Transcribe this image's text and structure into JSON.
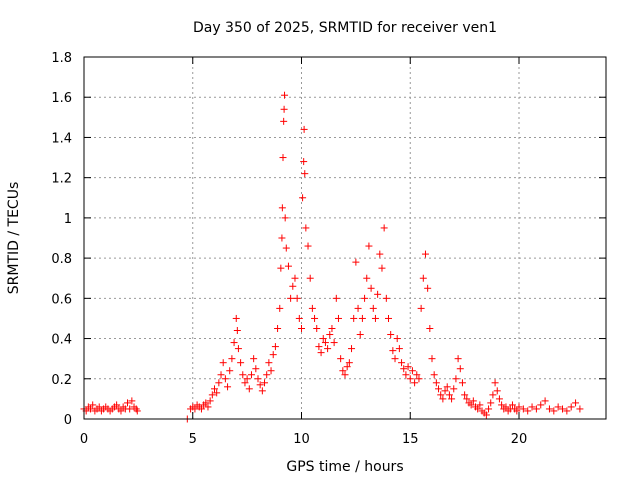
{
  "chart_data": {
    "type": "scatter",
    "title": "Day 350 of 2025, SRMTID for receiver ven1",
    "xlabel": "GPS time / hours",
    "ylabel": "SRMTID / TECUs",
    "xlim": [
      0,
      24
    ],
    "ylim": [
      0,
      1.8
    ],
    "xticks": [
      0,
      5,
      10,
      15,
      20
    ],
    "yticks": [
      0,
      0.2,
      0.4,
      0.6,
      0.8,
      1,
      1.2,
      1.4,
      1.6,
      1.8
    ],
    "xtick_labels": [
      "0",
      "5",
      "10",
      "15",
      "20"
    ],
    "ytick_labels": [
      "0",
      "0.2",
      "0.4",
      "0.6",
      "0.8",
      "1",
      "1.2",
      "1.4",
      "1.6",
      "1.8"
    ],
    "grid": true,
    "marker": "+",
    "color": "#ff0000",
    "series": [
      {
        "name": "SRMTID",
        "points": [
          [
            0.0,
            0.05
          ],
          [
            0.1,
            0.04
          ],
          [
            0.2,
            0.06
          ],
          [
            0.3,
            0.05
          ],
          [
            0.4,
            0.07
          ],
          [
            0.5,
            0.04
          ],
          [
            0.6,
            0.05
          ],
          [
            0.7,
            0.06
          ],
          [
            0.8,
            0.04
          ],
          [
            0.9,
            0.05
          ],
          [
            1.0,
            0.06
          ],
          [
            1.1,
            0.05
          ],
          [
            1.2,
            0.04
          ],
          [
            1.3,
            0.05
          ],
          [
            1.4,
            0.06
          ],
          [
            1.5,
            0.07
          ],
          [
            1.6,
            0.05
          ],
          [
            1.7,
            0.04
          ],
          [
            1.8,
            0.06
          ],
          [
            1.9,
            0.05
          ],
          [
            2.0,
            0.08
          ],
          [
            2.1,
            0.05
          ],
          [
            2.2,
            0.09
          ],
          [
            2.3,
            0.06
          ],
          [
            2.4,
            0.05
          ],
          [
            2.45,
            0.04
          ],
          [
            4.75,
            0.0
          ],
          [
            4.9,
            0.05
          ],
          [
            5.0,
            0.06
          ],
          [
            5.1,
            0.05
          ],
          [
            5.2,
            0.07
          ],
          [
            5.3,
            0.06
          ],
          [
            5.4,
            0.05
          ],
          [
            5.5,
            0.07
          ],
          [
            5.6,
            0.08
          ],
          [
            5.7,
            0.06
          ],
          [
            5.8,
            0.09
          ],
          [
            5.9,
            0.12
          ],
          [
            6.0,
            0.15
          ],
          [
            6.1,
            0.13
          ],
          [
            6.2,
            0.18
          ],
          [
            6.3,
            0.22
          ],
          [
            6.4,
            0.28
          ],
          [
            6.5,
            0.2
          ],
          [
            6.6,
            0.16
          ],
          [
            6.7,
            0.24
          ],
          [
            6.8,
            0.3
          ],
          [
            6.9,
            0.38
          ],
          [
            7.0,
            0.5
          ],
          [
            7.05,
            0.44
          ],
          [
            7.1,
            0.35
          ],
          [
            7.2,
            0.28
          ],
          [
            7.3,
            0.22
          ],
          [
            7.4,
            0.18
          ],
          [
            7.5,
            0.2
          ],
          [
            7.6,
            0.15
          ],
          [
            7.7,
            0.22
          ],
          [
            7.8,
            0.3
          ],
          [
            7.9,
            0.25
          ],
          [
            8.0,
            0.2
          ],
          [
            8.1,
            0.17
          ],
          [
            8.2,
            0.14
          ],
          [
            8.3,
            0.18
          ],
          [
            8.4,
            0.22
          ],
          [
            8.5,
            0.28
          ],
          [
            8.6,
            0.24
          ],
          [
            8.7,
            0.32
          ],
          [
            8.8,
            0.36
          ],
          [
            8.9,
            0.45
          ],
          [
            9.0,
            0.55
          ],
          [
            9.05,
            0.75
          ],
          [
            9.1,
            0.9
          ],
          [
            9.12,
            1.05
          ],
          [
            9.15,
            1.3
          ],
          [
            9.18,
            1.48
          ],
          [
            9.2,
            1.54
          ],
          [
            9.22,
            1.61
          ],
          [
            9.25,
            1.0
          ],
          [
            9.3,
            0.85
          ],
          [
            9.4,
            0.76
          ],
          [
            9.5,
            0.6
          ],
          [
            9.6,
            0.66
          ],
          [
            9.7,
            0.7
          ],
          [
            9.8,
            0.6
          ],
          [
            9.9,
            0.5
          ],
          [
            10.0,
            0.45
          ],
          [
            10.05,
            1.1
          ],
          [
            10.1,
            1.28
          ],
          [
            10.12,
            1.44
          ],
          [
            10.15,
            1.22
          ],
          [
            10.2,
            0.95
          ],
          [
            10.3,
            0.86
          ],
          [
            10.4,
            0.7
          ],
          [
            10.5,
            0.55
          ],
          [
            10.6,
            0.5
          ],
          [
            10.7,
            0.45
          ],
          [
            10.8,
            0.36
          ],
          [
            10.9,
            0.33
          ],
          [
            11.0,
            0.4
          ],
          [
            11.1,
            0.38
          ],
          [
            11.2,
            0.35
          ],
          [
            11.3,
            0.42
          ],
          [
            11.4,
            0.45
          ],
          [
            11.5,
            0.38
          ],
          [
            11.6,
            0.6
          ],
          [
            11.7,
            0.5
          ],
          [
            11.8,
            0.3
          ],
          [
            11.9,
            0.24
          ],
          [
            12.0,
            0.22
          ],
          [
            12.1,
            0.26
          ],
          [
            12.2,
            0.28
          ],
          [
            12.3,
            0.35
          ],
          [
            12.4,
            0.5
          ],
          [
            12.5,
            0.78
          ],
          [
            12.6,
            0.55
          ],
          [
            12.7,
            0.42
          ],
          [
            12.8,
            0.5
          ],
          [
            12.9,
            0.6
          ],
          [
            13.0,
            0.7
          ],
          [
            13.1,
            0.86
          ],
          [
            13.2,
            0.65
          ],
          [
            13.3,
            0.55
          ],
          [
            13.4,
            0.5
          ],
          [
            13.5,
            0.62
          ],
          [
            13.6,
            0.82
          ],
          [
            13.7,
            0.75
          ],
          [
            13.8,
            0.95
          ],
          [
            13.9,
            0.6
          ],
          [
            14.0,
            0.5
          ],
          [
            14.1,
            0.42
          ],
          [
            14.2,
            0.34
          ],
          [
            14.3,
            0.3
          ],
          [
            14.4,
            0.4
          ],
          [
            14.5,
            0.35
          ],
          [
            14.6,
            0.28
          ],
          [
            14.7,
            0.25
          ],
          [
            14.8,
            0.22
          ],
          [
            14.9,
            0.26
          ],
          [
            15.0,
            0.2
          ],
          [
            15.1,
            0.24
          ],
          [
            15.2,
            0.18
          ],
          [
            15.3,
            0.22
          ],
          [
            15.4,
            0.2
          ],
          [
            15.5,
            0.55
          ],
          [
            15.6,
            0.7
          ],
          [
            15.7,
            0.82
          ],
          [
            15.8,
            0.65
          ],
          [
            15.9,
            0.45
          ],
          [
            16.0,
            0.3
          ],
          [
            16.1,
            0.22
          ],
          [
            16.2,
            0.18
          ],
          [
            16.3,
            0.15
          ],
          [
            16.4,
            0.12
          ],
          [
            16.5,
            0.1
          ],
          [
            16.6,
            0.14
          ],
          [
            16.7,
            0.16
          ],
          [
            16.8,
            0.12
          ],
          [
            16.9,
            0.1
          ],
          [
            17.0,
            0.15
          ],
          [
            17.1,
            0.2
          ],
          [
            17.2,
            0.3
          ],
          [
            17.3,
            0.25
          ],
          [
            17.4,
            0.18
          ],
          [
            17.5,
            0.12
          ],
          [
            17.6,
            0.1
          ],
          [
            17.7,
            0.08
          ],
          [
            17.8,
            0.07
          ],
          [
            17.9,
            0.09
          ],
          [
            18.0,
            0.06
          ],
          [
            18.1,
            0.05
          ],
          [
            18.2,
            0.07
          ],
          [
            18.3,
            0.04
          ],
          [
            18.4,
            0.03
          ],
          [
            18.5,
            0.02
          ],
          [
            18.6,
            0.05
          ],
          [
            18.7,
            0.08
          ],
          [
            18.8,
            0.12
          ],
          [
            18.9,
            0.18
          ],
          [
            19.0,
            0.14
          ],
          [
            19.1,
            0.1
          ],
          [
            19.2,
            0.07
          ],
          [
            19.3,
            0.05
          ],
          [
            19.4,
            0.06
          ],
          [
            19.5,
            0.04
          ],
          [
            19.6,
            0.05
          ],
          [
            19.7,
            0.07
          ],
          [
            19.8,
            0.05
          ],
          [
            19.9,
            0.04
          ],
          [
            20.0,
            0.06
          ],
          [
            20.2,
            0.05
          ],
          [
            20.4,
            0.04
          ],
          [
            20.6,
            0.06
          ],
          [
            20.8,
            0.05
          ],
          [
            21.0,
            0.07
          ],
          [
            21.2,
            0.09
          ],
          [
            21.4,
            0.05
          ],
          [
            21.6,
            0.04
          ],
          [
            21.8,
            0.06
          ],
          [
            22.0,
            0.05
          ],
          [
            22.2,
            0.04
          ],
          [
            22.4,
            0.06
          ],
          [
            22.6,
            0.08
          ],
          [
            22.8,
            0.05
          ]
        ]
      }
    ]
  }
}
